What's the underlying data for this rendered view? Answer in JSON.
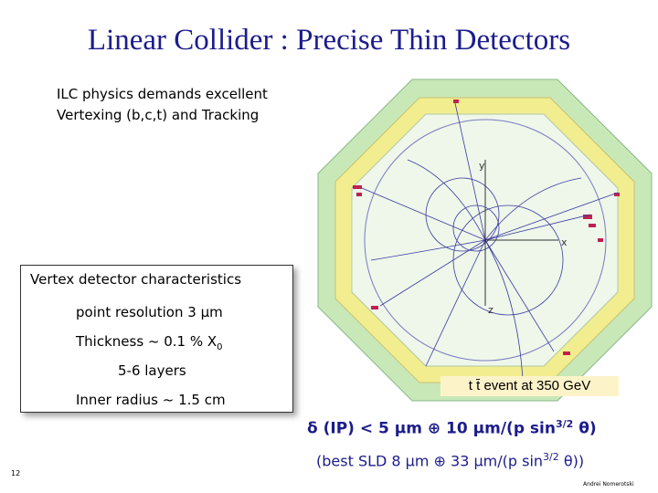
{
  "slide": {
    "title": "Linear Collider : Precise Thin Detectors",
    "intro_line1": "ILC physics demands excellent",
    "intro_line2": "Vertexing (b,c,t) and Tracking",
    "box": {
      "heading": "Vertex detector characteristics",
      "resolution_label": "point resolution 3 ",
      "resolution_unit": "μm",
      "thickness_label": "Thickness ~ 0.1 % X",
      "thickness_sub": "0",
      "layers": "5-6 layers",
      "radius": "Inner radius ~ 1.5 cm"
    },
    "event_image": {
      "caption": "t t̄ event at 350 GeV",
      "axis_y": "y",
      "axis_x": "x",
      "axis_z": "z"
    },
    "formula": {
      "pre": "δ (IP) < 5 μm ⊕ 10 μm/(p sin",
      "exp": "3/2",
      "post": " θ)"
    },
    "sld": {
      "pre": "(best SLD 8 μm ⊕ 33 μm/(p sin",
      "exp": "3/2",
      "post": " θ))"
    },
    "page_number": "12",
    "author": "Andrei Nomerotski"
  },
  "colors": {
    "title": "#1c1c8c",
    "outer_ring": "#c8e8b8",
    "yellow_band": "#f2ee90",
    "inner_area": "#eef7ea",
    "tracks": "#3a3aa0",
    "caption_bg": "#fdf3c9"
  }
}
